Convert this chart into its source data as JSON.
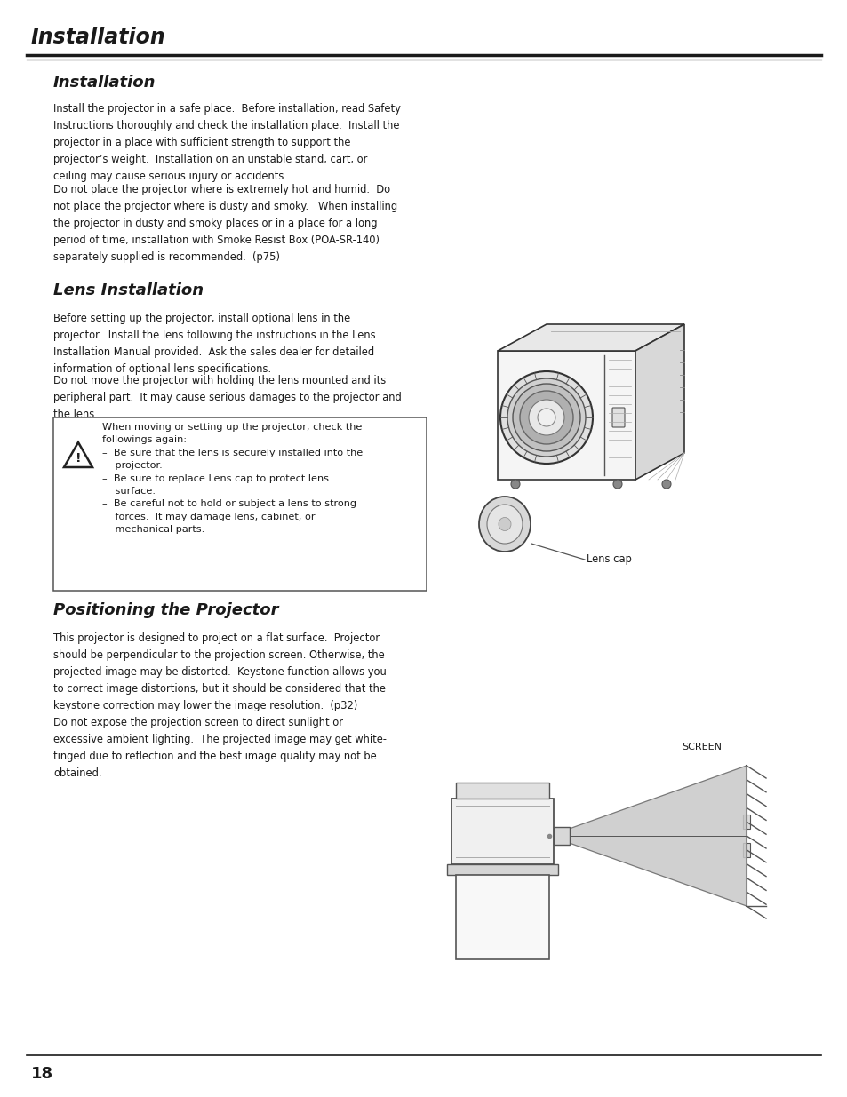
{
  "page_title": "Installation",
  "section1_title": "Installation",
  "section1_para1": "Install the projector in a safe place.  Before installation, read Safety\nInstructions thoroughly and check the installation place.  Install the\nprojector in a place with sufficient strength to support the\nprojector’s weight.  Installation on an unstable stand, cart, or\nceiling may cause serious injury or accidents.",
  "section1_para2": "Do not place the projector where is extremely hot and humid.  Do\nnot place the projector where is dusty and smoky.   When installing\nthe projector in dusty and smoky places or in a place for a long\nperiod of time, installation with Smoke Resist Box (POA-SR-140)\nseparately supplied is recommended.  (p75)",
  "section2_title": "Lens Installation",
  "section2_para1": "Before setting up the projector, install optional lens in the\nprojector.  Install the lens following the instructions in the Lens\nInstallation Manual provided.  Ask the sales dealer for detailed\ninformation of optional lens specifications.",
  "section2_para2": "Do not move the projector with holding the lens mounted and its\nperipheral part.  It may cause serious damages to the projector and\nthe lens.",
  "warning_text": "When moving or setting up the projector, check the\nfollowings again:\n–  Be sure that the lens is securely installed into the\n    projector.\n–  Be sure to replace Lens cap to protect lens\n    surface.\n–  Be careful not to hold or subject a lens to strong\n    forces.  It may damage lens, cabinet, or\n    mechanical parts.",
  "lens_cap_label": "Lens cap",
  "section3_title": "Positioning the Projector",
  "section3_para1": "This projector is designed to project on a flat surface.  Projector\nshould be perpendicular to the projection screen. Otherwise, the\nprojected image may be distorted.  Keystone function allows you\nto correct image distortions, but it should be considered that the\nkeystone correction may lower the image resolution.  (p32)\nDo not expose the projection screen to direct sunlight or\nexcessive ambient lighting.  The projected image may get white-\ntinged due to reflection and the best image quality may not be\nobtained.",
  "screen_label": "SCREEN",
  "page_number": "18",
  "bg_color": "#ffffff",
  "text_color": "#1a1a1a",
  "title_color": "#1a1a1a",
  "line_color": "#1a1a1a",
  "box_bg": "#ffffff",
  "box_border": "#666666"
}
